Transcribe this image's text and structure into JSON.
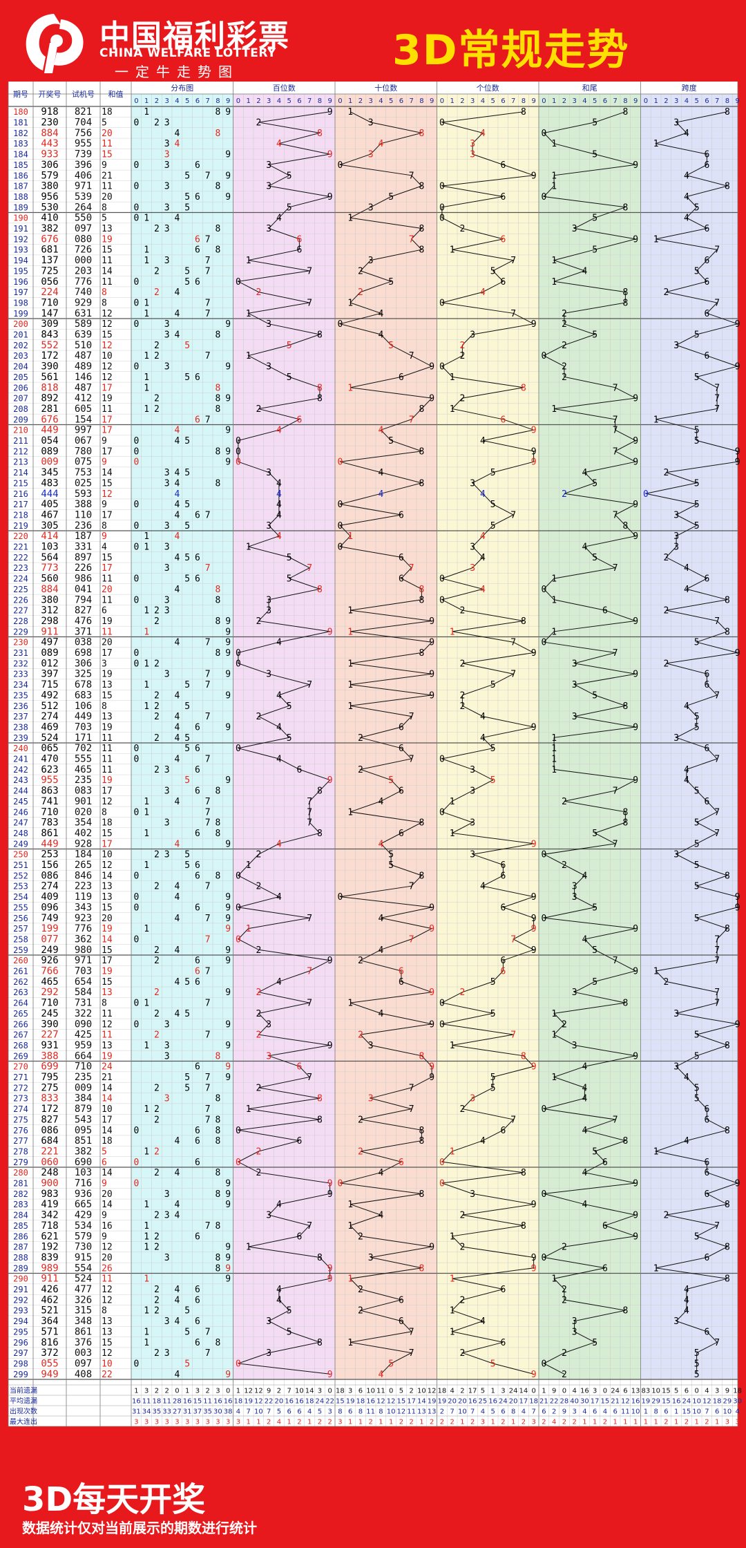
{
  "header": {
    "logo_cn": "中国福利彩票",
    "logo_en": "CHINA WELFARE LOTTERY",
    "logo_sub": "一定牛走势图",
    "title": "3D常规走势"
  },
  "footer": {
    "title": "3D每天开奖",
    "note": "数据统计仅对当前展示的期数进行统计"
  },
  "colors": {
    "background": "#e8191c",
    "title_text": "#fde000",
    "distribution_band": "#d6f6f8",
    "hundreds_band": "#f3dcf4",
    "tens_band": "#fbdcd0",
    "units_band": "#fbf7d4",
    "sum_tail_band": "#d6edd4",
    "span_band": "#dde2f8",
    "number_text": "#000000",
    "highlight_red": "#e5261e",
    "highlight_blue": "#1628c8"
  },
  "chart_data": {
    "type": "table",
    "columns": [
      "期号",
      "开奖号",
      "试机号",
      "和值",
      "分布图",
      "百位数",
      "十位数",
      "个位数",
      "和尾",
      "跨度"
    ],
    "digit_headers": [
      "0",
      "1",
      "2",
      "3",
      "4",
      "5",
      "6",
      "7",
      "8",
      "9"
    ],
    "periods": [
      "180",
      "181",
      "182",
      "183",
      "184",
      "185",
      "186",
      "187",
      "188",
      "189",
      "190",
      "191",
      "192",
      "193",
      "194",
      "195",
      "196",
      "197",
      "198",
      "199",
      "200",
      "201",
      "202",
      "203",
      "204",
      "205",
      "206",
      "207",
      "208",
      "209",
      "210",
      "211",
      "212",
      "213",
      "214",
      "215",
      "216",
      "217",
      "218",
      "219",
      "220",
      "221",
      "222",
      "223",
      "224",
      "225",
      "226",
      "227",
      "228",
      "229",
      "230",
      "231",
      "232",
      "233",
      "234",
      "235",
      "236",
      "237",
      "238",
      "239",
      "240",
      "241",
      "242",
      "243",
      "244",
      "245",
      "246",
      "247",
      "248",
      "249",
      "250",
      "251",
      "252",
      "253",
      "254",
      "255",
      "256",
      "257",
      "258",
      "259",
      "260",
      "261",
      "262",
      "263",
      "264",
      "265",
      "266",
      "267",
      "268",
      "269",
      "270",
      "271",
      "272",
      "273",
      "274",
      "275",
      "276",
      "277",
      "278",
      "279",
      "280",
      "281",
      "282",
      "283",
      "284",
      "285",
      "286",
      "287",
      "288",
      "289",
      "290",
      "291",
      "292",
      "293",
      "294",
      "295",
      "296",
      "297",
      "298",
      "299"
    ],
    "draw_numbers": [
      "918",
      "230",
      "884",
      "443",
      "933",
      "306",
      "579",
      "380",
      "956",
      "530",
      "410",
      "382",
      "676",
      "681",
      "137",
      "725",
      "056",
      "224",
      "710",
      "147",
      "309",
      "843",
      "552",
      "172",
      "390",
      "561",
      "818",
      "892",
      "281",
      "676",
      "449",
      "054",
      "089",
      "009",
      "345",
      "483",
      "444",
      "405",
      "467",
      "305",
      "414",
      "103",
      "564",
      "773",
      "560",
      "884",
      "380",
      "312",
      "298",
      "911",
      "497",
      "089",
      "012",
      "397",
      "715",
      "492",
      "512",
      "274",
      "469",
      "524",
      "065",
      "470",
      "623",
      "955",
      "863",
      "741",
      "710",
      "783",
      "861",
      "449",
      "253",
      "156",
      "086",
      "274",
      "409",
      "096",
      "749",
      "199",
      "077",
      "249",
      "926",
      "766",
      "465",
      "292",
      "710",
      "245",
      "390",
      "227",
      "931",
      "388",
      "699",
      "795",
      "275",
      "833",
      "172",
      "827",
      "086",
      "684",
      "221",
      "060",
      "248",
      "900",
      "983",
      "419",
      "342",
      "718",
      "621",
      "192",
      "839",
      "989",
      "911",
      "426",
      "462",
      "521",
      "364",
      "571",
      "816",
      "372",
      "055",
      "949"
    ],
    "trial_numbers": [
      "821",
      "704",
      "756",
      "955",
      "739",
      "396",
      "406",
      "971",
      "539",
      "264",
      "550",
      "097",
      "080",
      "726",
      "000",
      "203",
      "776",
      "740",
      "929",
      "631",
      "589",
      "639",
      "510",
      "487",
      "489",
      "146",
      "487",
      "412",
      "605",
      "154",
      "997",
      "067",
      "780",
      "075",
      "753",
      "025",
      "593",
      "388",
      "110",
      "236",
      "187",
      "331",
      "897",
      "226",
      "986",
      "041",
      "794",
      "827",
      "476",
      "371",
      "038",
      "698",
      "306",
      "325",
      "678",
      "683",
      "106",
      "449",
      "703",
      "171",
      "702",
      "555",
      "465",
      "235",
      "083",
      "901",
      "020",
      "354",
      "402",
      "928",
      "184",
      "265",
      "846",
      "223",
      "119",
      "343",
      "923",
      "776",
      "362",
      "980",
      "971",
      "703",
      "654",
      "584",
      "731",
      "322",
      "090",
      "425",
      "959",
      "664",
      "710",
      "235",
      "009",
      "384",
      "879",
      "543",
      "095",
      "851",
      "382",
      "690",
      "103",
      "716",
      "936",
      "665",
      "429",
      "534",
      "579",
      "730",
      "915",
      "554",
      "524",
      "477",
      "326",
      "315",
      "348",
      "861",
      "376",
      "003",
      "097",
      "408"
    ],
    "sums": [
      18,
      5,
      20,
      11,
      15,
      9,
      21,
      11,
      20,
      8,
      5,
      13,
      19,
      15,
      11,
      14,
      11,
      8,
      8,
      12,
      12,
      15,
      12,
      10,
      12,
      12,
      17,
      19,
      11,
      17,
      17,
      9,
      17,
      9,
      14,
      15,
      12,
      9,
      17,
      8,
      9,
      4,
      15,
      17,
      11,
      20,
      11,
      6,
      19,
      11,
      20,
      17,
      3,
      19,
      13,
      15,
      8,
      13,
      19,
      11,
      11,
      11,
      11,
      19,
      17,
      12,
      8,
      18,
      15,
      17,
      10,
      12,
      14,
      13,
      13,
      15,
      20,
      19,
      14,
      15,
      17,
      19,
      15,
      13,
      8,
      11,
      12,
      11,
      13,
      19,
      24,
      21,
      14,
      14,
      10,
      17,
      14,
      18,
      5,
      6,
      14,
      9,
      20,
      14,
      9,
      16,
      9,
      12,
      20,
      26,
      11,
      12,
      12,
      8,
      13,
      13,
      15,
      12,
      10,
      22
    ],
    "summary_labels": [
      "当前遗漏",
      "平均遗漏",
      "出现次数",
      "最大连出"
    ],
    "summary": {
      "distribution": [
        [
          1,
          3,
          2,
          2,
          0,
          1,
          3,
          2,
          3,
          0
        ],
        [
          16,
          11,
          18,
          11,
          28,
          16,
          15,
          11,
          16,
          16
        ],
        [
          31,
          34,
          35,
          33,
          27,
          31,
          37,
          35,
          30,
          38
        ],
        [
          3,
          3,
          3,
          3,
          3,
          3,
          3,
          3,
          3,
          3
        ]
      ],
      "hundreds": [
        [
          1,
          12,
          12,
          9,
          2,
          7,
          10,
          14,
          3,
          0
        ],
        [
          18,
          19,
          12,
          22,
          20,
          16,
          16,
          18,
          24,
          22
        ],
        [
          4,
          7,
          10,
          7,
          5,
          6,
          6,
          4,
          5,
          3
        ],
        [
          3,
          1,
          1,
          2,
          4,
          1,
          2,
          1,
          2,
          2
        ]
      ],
      "tens": [
        [
          18,
          3,
          6,
          10,
          11,
          0,
          5,
          2,
          10,
          12
        ],
        [
          15,
          19,
          18,
          16,
          12,
          12,
          15,
          17,
          14,
          19
        ],
        [
          8,
          6,
          8,
          11,
          8,
          10,
          12,
          11,
          13,
          13
        ],
        [
          3,
          1,
          1,
          2,
          1,
          1,
          2,
          2,
          1,
          2
        ]
      ],
      "units": [
        [
          18,
          4,
          2,
          17,
          5,
          1,
          3,
          24,
          14,
          0
        ],
        [
          19,
          20,
          20,
          16,
          25,
          16,
          24,
          20,
          17,
          18
        ],
        [
          2,
          7,
          10,
          7,
          4,
          5,
          6,
          8,
          4,
          7
        ],
        [
          2,
          2,
          1,
          2,
          3,
          1,
          2,
          1,
          2,
          3
        ]
      ],
      "sum_tail": [
        [
          1,
          9,
          0,
          4,
          16,
          3,
          0,
          24,
          6,
          13
        ],
        [
          21,
          22,
          28,
          40,
          30,
          17,
          15,
          21,
          12,
          16
        ],
        [
          6,
          2,
          9,
          3,
          4,
          6,
          4,
          6,
          11,
          10
        ],
        [
          2,
          4,
          2,
          2,
          1,
          1,
          2,
          1,
          1,
          1
        ]
      ],
      "span": [
        [
          83,
          10,
          15,
          5,
          6,
          0,
          4,
          3,
          9,
          18
        ],
        [
          19,
          29,
          15,
          16,
          24,
          10,
          12,
          18,
          29,
          30
        ],
        [
          1,
          8,
          6,
          1,
          15,
          10,
          7,
          6,
          10,
          4
        ],
        [
          1,
          1,
          2,
          1,
          2,
          1,
          2,
          1,
          3,
          3
        ]
      ]
    }
  }
}
